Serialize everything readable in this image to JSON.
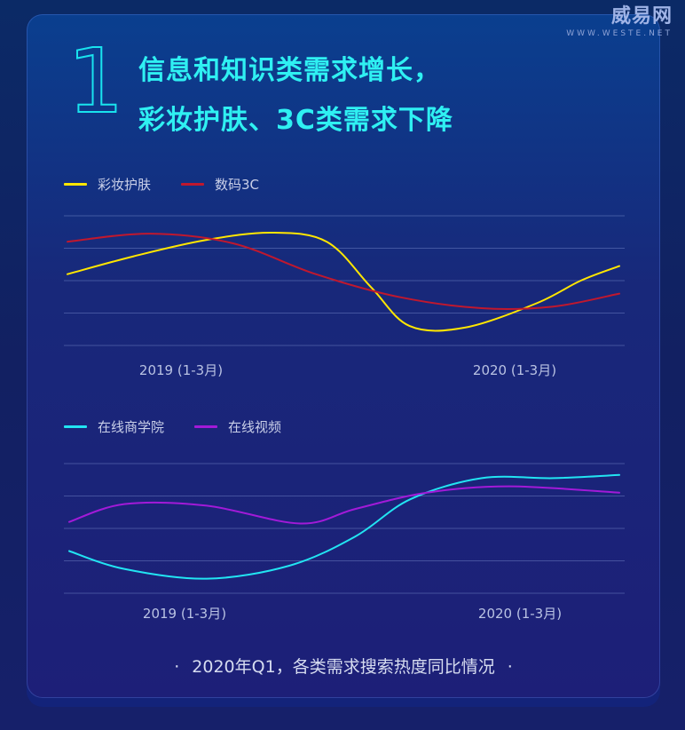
{
  "brand": {
    "name": "威易网",
    "url": "WWW.WESTE.NET"
  },
  "header": {
    "number": "1",
    "title_line1": "信息和知识类需求增长，",
    "title_line2": "彩妆护肤、3C类需求下降"
  },
  "footer": {
    "dot_left": "·",
    "caption": "2020年Q1，各类需求搜索热度同比情况",
    "dot_right": "·"
  },
  "chart_data": [
    {
      "type": "line",
      "x": [
        0,
        1
      ],
      "categories": [
        "2019 (1-3月)",
        "2020 (1-3月)"
      ],
      "grid": true,
      "legend": "top-left",
      "ylim": [
        0,
        4
      ],
      "series": [
        {
          "name": "彩妆护肤",
          "color": "#ffe600",
          "points": [
            [
              0.0,
              2.2
            ],
            [
              0.12,
              2.75
            ],
            [
              0.25,
              3.25
            ],
            [
              0.37,
              3.48
            ],
            [
              0.47,
              3.2
            ],
            [
              0.55,
              1.8
            ],
            [
              0.62,
              0.6
            ],
            [
              0.72,
              0.55
            ],
            [
              0.85,
              1.3
            ],
            [
              0.93,
              2.0
            ],
            [
              1.0,
              2.45
            ]
          ]
        },
        {
          "name": "数码3C",
          "color": "#c0182e",
          "points": [
            [
              0.0,
              3.2
            ],
            [
              0.15,
              3.45
            ],
            [
              0.3,
              3.15
            ],
            [
              0.45,
              2.2
            ],
            [
              0.6,
              1.5
            ],
            [
              0.75,
              1.15
            ],
            [
              0.88,
              1.2
            ],
            [
              1.0,
              1.6
            ]
          ]
        }
      ]
    },
    {
      "type": "line",
      "x": [
        0,
        1
      ],
      "categories": [
        "2019 (1-3月)",
        "2020 (1-3月)"
      ],
      "grid": true,
      "legend": "top-left",
      "ylim": [
        0,
        4
      ],
      "series": [
        {
          "name": "在线商学院",
          "color": "#22e4f2",
          "points": [
            [
              0.0,
              1.3
            ],
            [
              0.1,
              0.75
            ],
            [
              0.25,
              0.45
            ],
            [
              0.4,
              0.85
            ],
            [
              0.52,
              1.75
            ],
            [
              0.62,
              2.9
            ],
            [
              0.75,
              3.55
            ],
            [
              0.88,
              3.55
            ],
            [
              1.0,
              3.65
            ]
          ]
        },
        {
          "name": "在线视频",
          "color": "#a21ad8",
          "points": [
            [
              0.0,
              2.2
            ],
            [
              0.1,
              2.75
            ],
            [
              0.25,
              2.7
            ],
            [
              0.42,
              2.15
            ],
            [
              0.52,
              2.6
            ],
            [
              0.65,
              3.1
            ],
            [
              0.8,
              3.3
            ],
            [
              1.0,
              3.1
            ]
          ]
        }
      ]
    }
  ]
}
